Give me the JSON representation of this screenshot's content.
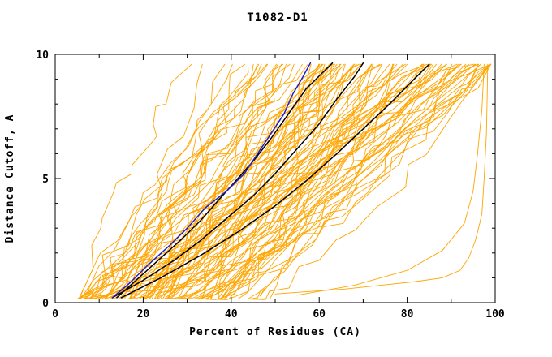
{
  "chart_data": {
    "type": "line",
    "title": "T1082-D1",
    "xlabel": "Percent of Residues (CA)",
    "ylabel": "Distance Cutoff, A",
    "xlim": [
      0,
      100
    ],
    "ylim": [
      0,
      10
    ],
    "x_ticks": [
      0,
      20,
      40,
      60,
      80,
      100
    ],
    "y_ticks": [
      0,
      5,
      10
    ],
    "x_minor_step": 10,
    "y_minor_step": 1,
    "grid": false,
    "legend": "none",
    "colors": {
      "ensemble": "#FFA500",
      "highlight": "#000000",
      "best": "#2020C8",
      "axis": "#000000",
      "background": "#FFFFFF"
    },
    "ensemble": {
      "description": "~100 orange prediction GDT curves fanning from lower-left (x 5-45, y 0.15) up to the top of the plot (y 9.6) at x 35-99",
      "count": 100,
      "seed": 7,
      "x_start_range": [
        5,
        45
      ],
      "x_span_range": [
        25,
        80
      ],
      "y_start": 0.15,
      "y_end": 9.6
    },
    "outlier_series": [
      {
        "name": "orange-flat-bottom-right-curve",
        "points": [
          [
            50,
            0.35
          ],
          [
            58,
            0.45
          ],
          [
            66,
            0.55
          ],
          [
            74,
            0.7
          ],
          [
            82,
            0.85
          ],
          [
            88,
            1.0
          ],
          [
            92,
            1.3
          ],
          [
            94,
            1.8
          ],
          [
            95.5,
            2.5
          ],
          [
            96.5,
            3.2
          ],
          [
            97,
            3.6
          ]
        ]
      },
      {
        "name": "orange-right-edge-riser-curve",
        "points": [
          [
            55,
            0.3
          ],
          [
            68,
            0.7
          ],
          [
            80,
            1.3
          ],
          [
            88,
            2.1
          ],
          [
            93,
            3.2
          ],
          [
            95,
            4.5
          ],
          [
            96,
            6.0
          ],
          [
            97,
            7.8
          ],
          [
            97.5,
            9.6
          ]
        ]
      },
      {
        "name": "orange-far-right-vertical-curve",
        "points": [
          [
            97,
            3.6
          ],
          [
            97.5,
            5.0
          ],
          [
            98,
            6.8
          ],
          [
            98.2,
            8.4
          ],
          [
            98.3,
            9.6
          ]
        ]
      }
    ],
    "highlight_series": [
      {
        "name": "model-curve-black-1",
        "color_key": "highlight",
        "points": [
          [
            14,
            0.2
          ],
          [
            19,
            1.0
          ],
          [
            24,
            1.8
          ],
          [
            29,
            2.6
          ],
          [
            33,
            3.3
          ],
          [
            37,
            4.1
          ],
          [
            41,
            4.9
          ],
          [
            45,
            5.7
          ],
          [
            49,
            6.6
          ],
          [
            53,
            7.6
          ],
          [
            57,
            8.6
          ],
          [
            61,
            9.3
          ],
          [
            63,
            9.65
          ]
        ]
      },
      {
        "name": "model-curve-black-2",
        "color_key": "highlight",
        "points": [
          [
            13,
            0.2
          ],
          [
            20,
            0.9
          ],
          [
            27,
            1.7
          ],
          [
            33,
            2.5
          ],
          [
            39,
            3.4
          ],
          [
            45,
            4.3
          ],
          [
            50,
            5.2
          ],
          [
            55,
            6.2
          ],
          [
            60,
            7.2
          ],
          [
            64,
            8.2
          ],
          [
            68,
            9.1
          ],
          [
            70,
            9.65
          ]
        ]
      },
      {
        "name": "model-curve-black-3",
        "color_key": "highlight",
        "points": [
          [
            15,
            0.2
          ],
          [
            24,
            1.0
          ],
          [
            33,
            1.9
          ],
          [
            42,
            2.9
          ],
          [
            50,
            3.9
          ],
          [
            57,
            4.9
          ],
          [
            64,
            6.0
          ],
          [
            70,
            7.0
          ],
          [
            76,
            8.0
          ],
          [
            81,
            8.9
          ],
          [
            85,
            9.6
          ]
        ]
      },
      {
        "name": "model-curve-blue",
        "color_key": "best",
        "points": [
          [
            13,
            0.2
          ],
          [
            17,
            0.8
          ],
          [
            21,
            1.5
          ],
          [
            26,
            2.3
          ],
          [
            30,
            3.0
          ],
          [
            34,
            3.8
          ],
          [
            39,
            4.5
          ],
          [
            43,
            5.2
          ],
          [
            46,
            6.0
          ],
          [
            49,
            6.8
          ],
          [
            52,
            7.6
          ],
          [
            54,
            8.4
          ],
          [
            56,
            9.0
          ],
          [
            58,
            9.65
          ]
        ]
      }
    ]
  }
}
